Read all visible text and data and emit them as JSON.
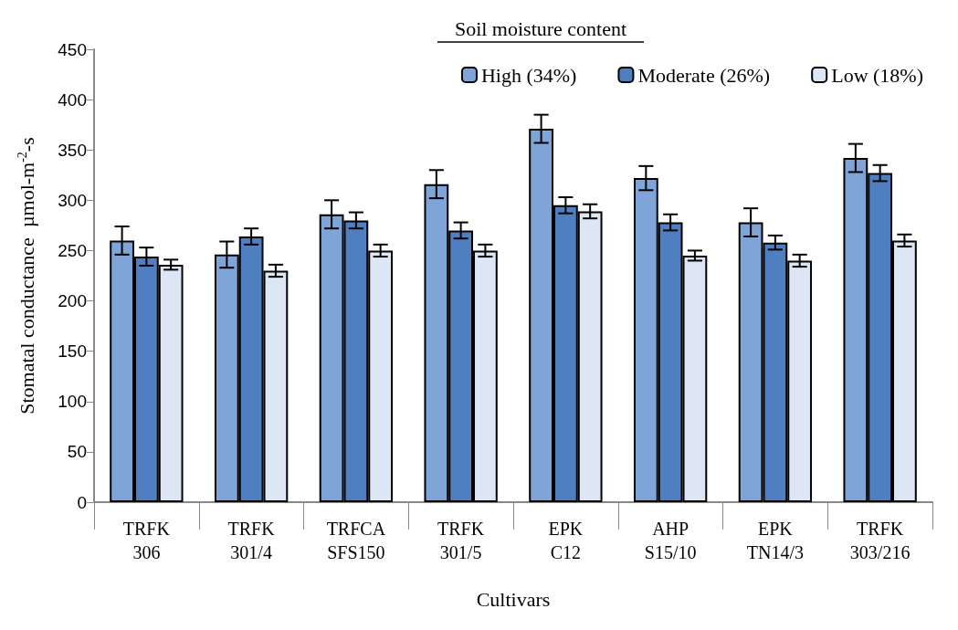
{
  "chart_data": {
    "type": "bar",
    "xlabel": "Cultivars",
    "ylabel": "Stomatal conductance  µmol-m$^{-2}$-s",
    "legend_title": "Soil moisture content",
    "categories": [
      "TRFK\n306",
      "TRFK\n301/4",
      "TRFCA\nSFS150",
      "TRFK\n301/5",
      "EPK\nC12",
      "AHP\nS15/10",
      "EPK\nTN14/3",
      "TRFK\n303/216"
    ],
    "series": [
      {
        "name": "High (34%)",
        "color": "#7ea4d8",
        "values": [
          260,
          246,
          286,
          316,
          371,
          322,
          278,
          342
        ],
        "errors": [
          14,
          13,
          14,
          14,
          14,
          12,
          14,
          14
        ]
      },
      {
        "name": "Moderate (26%)",
        "color": "#4f7fc0",
        "values": [
          244,
          264,
          280,
          270,
          295,
          278,
          258,
          327
        ],
        "errors": [
          9,
          8,
          8,
          8,
          8,
          8,
          7,
          8
        ]
      },
      {
        "name": "Low (18%)",
        "color": "#dce6f4",
        "values": [
          236,
          230,
          250,
          250,
          289,
          245,
          240,
          260
        ],
        "errors": [
          5,
          6,
          6,
          6,
          7,
          5,
          6,
          6
        ]
      }
    ],
    "ylim": [
      0,
      450
    ],
    "yticks": [
      0,
      50,
      100,
      150,
      200,
      250,
      300,
      350,
      400,
      450
    ],
    "grid": false,
    "legend": "top right"
  }
}
